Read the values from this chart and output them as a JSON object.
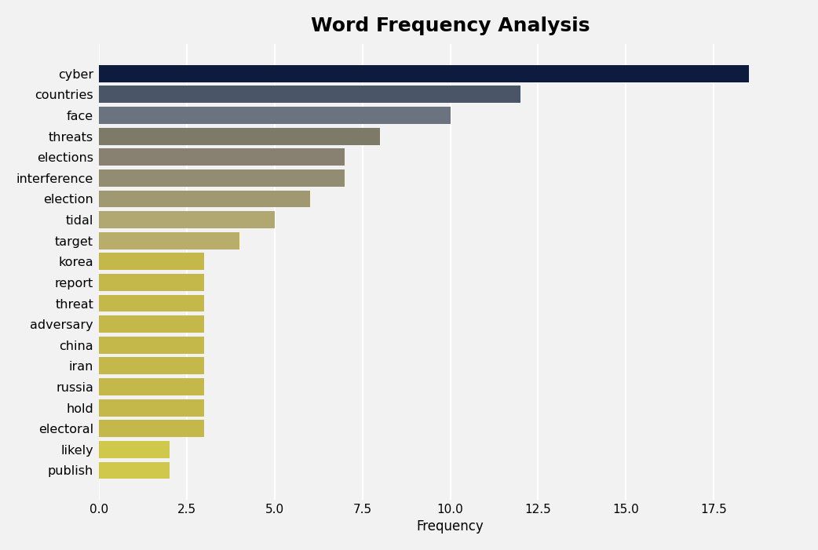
{
  "title": "Word Frequency Analysis",
  "xlabel": "Frequency",
  "categories": [
    "cyber",
    "countries",
    "face",
    "threats",
    "elections",
    "interference",
    "election",
    "tidal",
    "target",
    "korea",
    "report",
    "threat",
    "adversary",
    "china",
    "iran",
    "russia",
    "hold",
    "electoral",
    "likely",
    "publish"
  ],
  "values": [
    18.5,
    12.0,
    10.0,
    8.0,
    7.0,
    7.0,
    6.0,
    5.0,
    4.0,
    3.0,
    3.0,
    3.0,
    3.0,
    3.0,
    3.0,
    3.0,
    3.0,
    3.0,
    2.0,
    2.0
  ],
  "bar_colors": [
    "#0d1b3e",
    "#4a5568",
    "#6b7280",
    "#7d7b67",
    "#888070",
    "#928c72",
    "#a09870",
    "#b0a870",
    "#b8ad6a",
    "#c4b84a",
    "#c4b84a",
    "#c4b84a",
    "#c4b84a",
    "#c4b84a",
    "#c4b84a",
    "#c4b84a",
    "#c4b84a",
    "#c4b84a",
    "#d0c84a",
    "#d0c84a"
  ],
  "background_color": "#f2f2f2",
  "plot_background_color": "#f2f2f2",
  "title_fontsize": 18,
  "xlim": [
    0,
    20
  ],
  "xticks": [
    0.0,
    2.5,
    5.0,
    7.5,
    10.0,
    12.5,
    15.0,
    17.5
  ],
  "bar_height": 0.82,
  "figsize": [
    10.42,
    7.01
  ],
  "dpi": 100
}
